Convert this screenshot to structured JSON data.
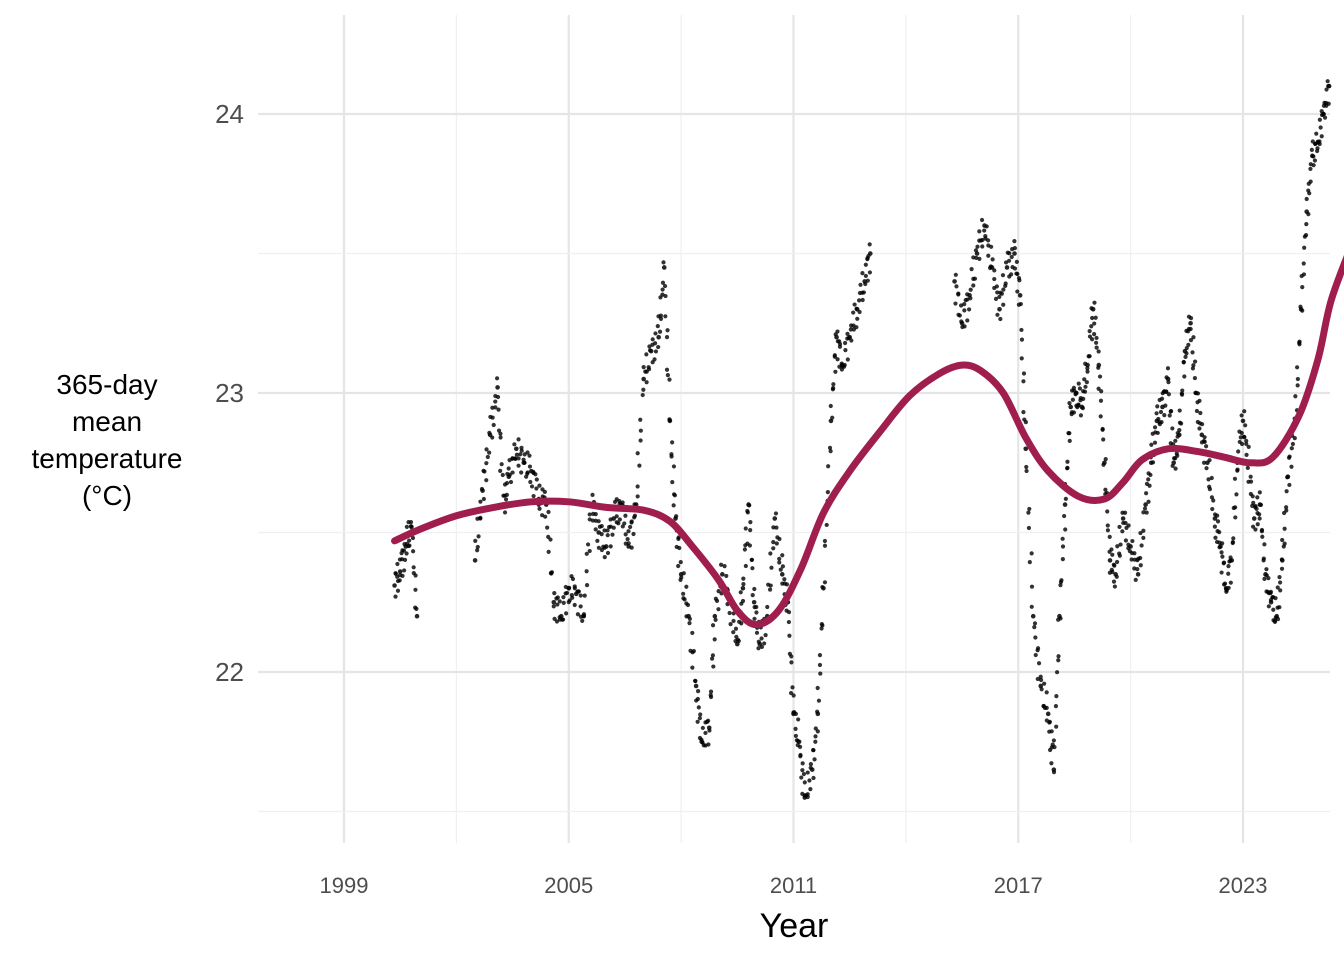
{
  "chart_data": {
    "type": "scatter",
    "xlabel": "Year",
    "ylabel_lines": [
      "365-day",
      "mean",
      "temperature",
      "(°C)"
    ],
    "x_range": [
      1998.3,
      2025.3
    ],
    "ylim": [
      21.45,
      24.26
    ],
    "x_ticks": [
      1999,
      2005,
      2011,
      2017,
      2023
    ],
    "y_ticks": [
      22,
      23,
      24
    ],
    "grid": true,
    "trend_color": "#A01E4E",
    "point_color": "#000000",
    "observed": [
      [
        2000.35,
        22.31
      ],
      [
        2000.5,
        22.36
      ],
      [
        2000.65,
        22.45
      ],
      [
        2000.8,
        22.52
      ],
      [
        2000.95,
        22.2
      ],
      [
        2002.5,
        22.4
      ],
      [
        2002.7,
        22.65
      ],
      [
        2002.9,
        22.85
      ],
      [
        2003.1,
        23.02
      ],
      [
        2003.25,
        22.6
      ],
      [
        2003.4,
        22.7
      ],
      [
        2003.6,
        22.8
      ],
      [
        2003.8,
        22.75
      ],
      [
        2004.0,
        22.72
      ],
      [
        2004.2,
        22.62
      ],
      [
        2004.4,
        22.6
      ],
      [
        2004.6,
        22.25
      ],
      [
        2004.8,
        22.2
      ],
      [
        2005.0,
        22.3
      ],
      [
        2005.2,
        22.28
      ],
      [
        2005.4,
        22.2
      ],
      [
        2005.6,
        22.6
      ],
      [
        2005.8,
        22.5
      ],
      [
        2006.0,
        22.45
      ],
      [
        2006.2,
        22.55
      ],
      [
        2006.4,
        22.6
      ],
      [
        2006.6,
        22.45
      ],
      [
        2006.8,
        22.6
      ],
      [
        2007.0,
        23.05
      ],
      [
        2007.2,
        23.15
      ],
      [
        2007.4,
        23.2
      ],
      [
        2007.55,
        23.45
      ],
      [
        2007.7,
        22.9
      ],
      [
        2007.85,
        22.55
      ],
      [
        2008.0,
        22.35
      ],
      [
        2008.2,
        22.2
      ],
      [
        2008.4,
        21.95
      ],
      [
        2008.55,
        21.75
      ],
      [
        2008.75,
        21.8
      ],
      [
        2008.9,
        22.2
      ],
      [
        2009.1,
        22.35
      ],
      [
        2009.3,
        22.25
      ],
      [
        2009.5,
        22.1
      ],
      [
        2009.65,
        22.3
      ],
      [
        2009.8,
        22.6
      ],
      [
        2009.95,
        22.25
      ],
      [
        2010.1,
        22.1
      ],
      [
        2010.3,
        22.2
      ],
      [
        2010.5,
        22.55
      ],
      [
        2010.7,
        22.35
      ],
      [
        2010.85,
        22.25
      ],
      [
        2011.0,
        21.85
      ],
      [
        2011.15,
        21.75
      ],
      [
        2011.3,
        21.55
      ],
      [
        2011.5,
        21.65
      ],
      [
        2011.65,
        21.85
      ],
      [
        2011.8,
        22.3
      ],
      [
        2012.0,
        22.9
      ],
      [
        2012.15,
        23.2
      ],
      [
        2012.3,
        23.1
      ],
      [
        2012.5,
        23.2
      ],
      [
        2012.7,
        23.3
      ],
      [
        2012.9,
        23.4
      ],
      [
        2013.05,
        23.5
      ],
      [
        2015.3,
        23.4
      ],
      [
        2015.5,
        23.25
      ],
      [
        2015.7,
        23.35
      ],
      [
        2015.9,
        23.5
      ],
      [
        2016.1,
        23.6
      ],
      [
        2016.3,
        23.45
      ],
      [
        2016.5,
        23.3
      ],
      [
        2016.7,
        23.45
      ],
      [
        2016.9,
        23.5
      ],
      [
        2017.05,
        23.35
      ],
      [
        2017.2,
        22.8
      ],
      [
        2017.4,
        22.2
      ],
      [
        2017.6,
        21.95
      ],
      [
        2017.8,
        21.85
      ],
      [
        2017.95,
        21.65
      ],
      [
        2018.1,
        22.2
      ],
      [
        2018.25,
        22.6
      ],
      [
        2018.4,
        22.95
      ],
      [
        2018.55,
        23.0
      ],
      [
        2018.7,
        22.95
      ],
      [
        2018.85,
        23.1
      ],
      [
        2019.0,
        23.3
      ],
      [
        2019.15,
        23.1
      ],
      [
        2019.3,
        22.75
      ],
      [
        2019.45,
        22.4
      ],
      [
        2019.6,
        22.35
      ],
      [
        2019.8,
        22.55
      ],
      [
        2020.0,
        22.45
      ],
      [
        2020.2,
        22.35
      ],
      [
        2020.4,
        22.6
      ],
      [
        2020.55,
        22.75
      ],
      [
        2020.7,
        22.9
      ],
      [
        2020.85,
        22.95
      ],
      [
        2021.0,
        23.05
      ],
      [
        2021.15,
        22.75
      ],
      [
        2021.3,
        22.85
      ],
      [
        2021.45,
        23.15
      ],
      [
        2021.6,
        23.25
      ],
      [
        2021.75,
        23.0
      ],
      [
        2021.9,
        22.85
      ],
      [
        2022.05,
        22.75
      ],
      [
        2022.25,
        22.55
      ],
      [
        2022.4,
        22.45
      ],
      [
        2022.55,
        22.3
      ],
      [
        2022.7,
        22.4
      ],
      [
        2022.85,
        22.75
      ],
      [
        2023.0,
        22.9
      ],
      [
        2023.15,
        22.75
      ],
      [
        2023.3,
        22.55
      ],
      [
        2023.45,
        22.6
      ],
      [
        2023.6,
        22.35
      ],
      [
        2023.75,
        22.25
      ],
      [
        2023.9,
        22.2
      ],
      [
        2024.05,
        22.4
      ],
      [
        2024.2,
        22.7
      ],
      [
        2024.4,
        22.9
      ],
      [
        2024.55,
        23.3
      ],
      [
        2024.7,
        23.65
      ],
      [
        2024.85,
        23.85
      ],
      [
        2025.0,
        23.9
      ],
      [
        2025.15,
        24.0
      ],
      [
        2025.3,
        24.1
      ]
    ],
    "trend": [
      [
        2000.35,
        22.47
      ],
      [
        2001.0,
        22.51
      ],
      [
        2002.0,
        22.56
      ],
      [
        2003.0,
        22.59
      ],
      [
        2004.0,
        22.61
      ],
      [
        2005.0,
        22.61
      ],
      [
        2006.0,
        22.59
      ],
      [
        2007.0,
        22.58
      ],
      [
        2007.7,
        22.54
      ],
      [
        2008.3,
        22.45
      ],
      [
        2009.0,
        22.33
      ],
      [
        2009.5,
        22.22
      ],
      [
        2010.0,
        22.17
      ],
      [
        2010.6,
        22.22
      ],
      [
        2011.2,
        22.37
      ],
      [
        2011.8,
        22.57
      ],
      [
        2012.5,
        22.72
      ],
      [
        2013.3,
        22.86
      ],
      [
        2014.1,
        22.99
      ],
      [
        2014.9,
        23.07
      ],
      [
        2015.5,
        23.1
      ],
      [
        2016.0,
        23.08
      ],
      [
        2016.6,
        23.0
      ],
      [
        2017.2,
        22.84
      ],
      [
        2017.8,
        22.72
      ],
      [
        2018.6,
        22.63
      ],
      [
        2019.3,
        22.62
      ],
      [
        2019.8,
        22.68
      ],
      [
        2020.3,
        22.76
      ],
      [
        2021.0,
        22.8
      ],
      [
        2021.8,
        22.79
      ],
      [
        2022.5,
        22.77
      ],
      [
        2023.2,
        22.75
      ],
      [
        2023.8,
        22.77
      ],
      [
        2024.5,
        22.92
      ],
      [
        2025.0,
        23.12
      ],
      [
        2025.35,
        23.33
      ],
      [
        2025.9,
        23.53
      ]
    ]
  }
}
